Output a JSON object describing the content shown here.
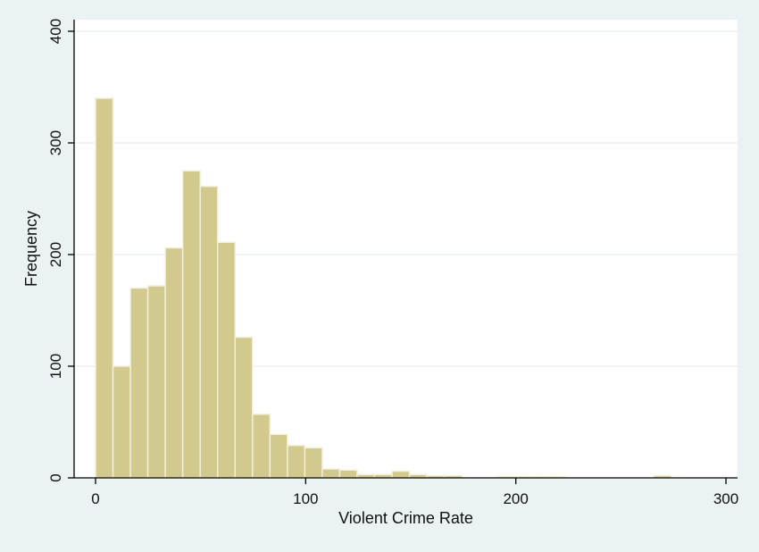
{
  "chart_data": {
    "type": "bar",
    "title": "",
    "xlabel": "Violent Crime Rate",
    "ylabel": "Frequency",
    "xlim": [
      0,
      300
    ],
    "ylim": [
      0,
      400
    ],
    "xticks": [
      0,
      100,
      200,
      300
    ],
    "yticks": [
      0,
      100,
      200,
      300,
      400
    ],
    "grid": "horizontal",
    "bin_width": 8.3,
    "bins": [
      {
        "start": 0,
        "value": 340
      },
      {
        "start": 8.3,
        "value": 100
      },
      {
        "start": 16.6,
        "value": 170
      },
      {
        "start": 24.9,
        "value": 172
      },
      {
        "start": 33.2,
        "value": 206
      },
      {
        "start": 41.5,
        "value": 275
      },
      {
        "start": 49.8,
        "value": 261
      },
      {
        "start": 58.1,
        "value": 211
      },
      {
        "start": 66.4,
        "value": 126
      },
      {
        "start": 74.7,
        "value": 57
      },
      {
        "start": 83.0,
        "value": 39
      },
      {
        "start": 91.3,
        "value": 29
      },
      {
        "start": 99.6,
        "value": 27
      },
      {
        "start": 107.9,
        "value": 8
      },
      {
        "start": 116.2,
        "value": 7
      },
      {
        "start": 124.5,
        "value": 3
      },
      {
        "start": 132.8,
        "value": 3
      },
      {
        "start": 141.1,
        "value": 6
      },
      {
        "start": 149.4,
        "value": 3
      },
      {
        "start": 157.7,
        "value": 2
      },
      {
        "start": 166.0,
        "value": 2
      },
      {
        "start": 191.0,
        "value": 1
      },
      {
        "start": 199.3,
        "value": 1
      },
      {
        "start": 207.6,
        "value": 1
      },
      {
        "start": 215.9,
        "value": 1
      },
      {
        "start": 265.7,
        "value": 2
      }
    ]
  },
  "colors": {
    "background": "#eaf2f3",
    "plot_background": "#ffffff",
    "bar_fill": "#d2c98f",
    "bar_stroke": "#f3efd9",
    "grid": "#e7eeef",
    "axis": "#000000"
  }
}
